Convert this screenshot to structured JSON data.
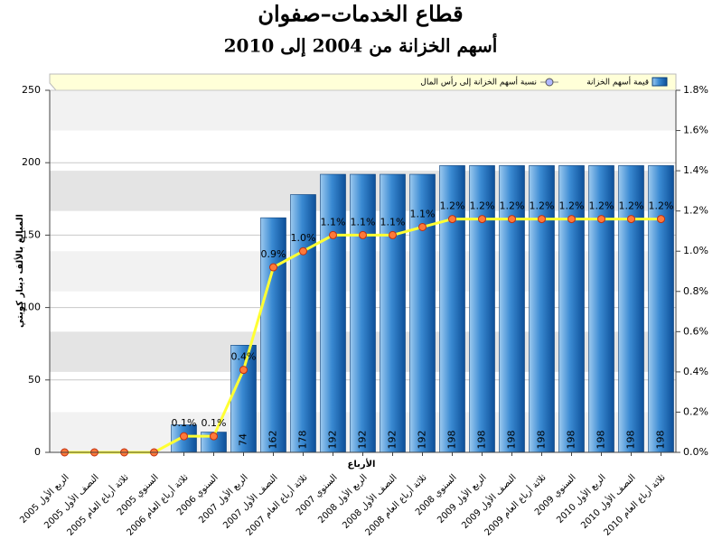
{
  "chart_data": {
    "type": "bar-line",
    "title": "قطاع الخدمات–صفوان",
    "subtitle": "أسهم الخزانة من 2004 إلى 2010",
    "y_label": "المبالغ بالألف دينار كويتي",
    "x_label": "الأرباع",
    "categories": [
      "الربع الأول 2005",
      "النصف الأول 2005",
      "ثلاثة أرباع العام 2005",
      "السنوي 2005",
      "ثلاثة أرباع العام 2006",
      "السنوي 2006",
      "الربع الأول 2007",
      "النصف الأول 2007",
      "ثلاثة أرباع العام 2007",
      "السنوي 2007",
      "الربع الأول 2008",
      "النصف الأول 2008",
      "ثلاثة أرباع العام 2008",
      "السنوي 2008",
      "الربع الأول 2009",
      "النصف الأول 2009",
      "ثلاثة أرباع العام 2009",
      "السنوي 2009",
      "الربع الأول 2010",
      "النصف الأول 2010",
      "ثلاثة أرباع العام 2010"
    ],
    "series": [
      {
        "name": "قيمة أسهم الخزانة",
        "type": "bar",
        "color": "#2f80c8",
        "values": [
          0,
          0,
          0,
          0,
          19,
          14,
          74,
          162,
          178,
          192,
          192,
          192,
          192,
          198,
          198,
          198,
          198,
          198,
          198,
          198,
          198
        ],
        "value_labels": [
          null,
          null,
          null,
          null,
          null,
          null,
          "74",
          "162",
          "178",
          "192",
          "192",
          "192",
          "192",
          "198",
          "198",
          "198",
          "198",
          "198",
          "198",
          "198",
          "198"
        ]
      },
      {
        "name": "نسبة أسهم الخزانة إلى رأس المال",
        "type": "line",
        "axis": "y2",
        "color": "#ffff33",
        "values": [
          0,
          0,
          0,
          0,
          0.08,
          0.08,
          0.41,
          0.92,
          1.0,
          1.08,
          1.08,
          1.08,
          1.12,
          1.16,
          1.16,
          1.16,
          1.16,
          1.16,
          1.16,
          1.16,
          1.16
        ],
        "value_labels": [
          null,
          null,
          null,
          null,
          "0.1%",
          "0.1%",
          "0.4%",
          "0.9%",
          "1.0%",
          "1.1%",
          "1.1%",
          "1.1%",
          "1.1%",
          "1.2%",
          "1.2%",
          "1.2%",
          "1.2%",
          "1.2%",
          "1.2%",
          "1.2%",
          "1.2%"
        ]
      }
    ],
    "ylim": [
      0,
      250
    ],
    "yticks": [
      0,
      50,
      100,
      150,
      200,
      250
    ],
    "y2lim": [
      0,
      1.8
    ],
    "y2ticks": [
      {
        "value": 0,
        "label": "0.0%"
      },
      {
        "value": 0.2,
        "label": "0.2%"
      },
      {
        "value": 0.4,
        "label": "0.4%"
      },
      {
        "value": 0.6,
        "label": "0.6%"
      },
      {
        "value": 0.8,
        "label": "0.8%"
      },
      {
        "value": 1.0,
        "label": "1.0%"
      },
      {
        "value": 1.2,
        "label": "1.2%"
      },
      {
        "value": 1.4,
        "label": "1.4%"
      },
      {
        "value": 1.6,
        "label": "1.6%"
      },
      {
        "value": 1.8,
        "label": "1.8%"
      }
    ],
    "grid": true,
    "legend": "top"
  }
}
